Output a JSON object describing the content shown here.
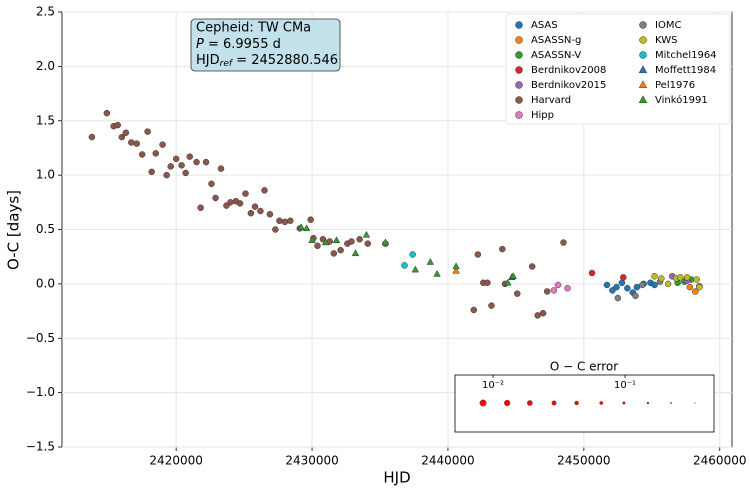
{
  "chart_data": {
    "type": "scatter",
    "x_label": "HJD",
    "y_label": "O-C [days]",
    "xlim": [
      2411600,
      2460900
    ],
    "ylim": [
      -1.5,
      2.5
    ],
    "xticks": [
      2420000,
      2430000,
      2440000,
      2450000,
      2460000
    ],
    "yticks": [
      {
        "value": -1.5,
        "label": "−1.5"
      },
      {
        "value": -1,
        "label": "−1.0"
      },
      {
        "value": -0.5,
        "label": "−0.5"
      },
      {
        "value": 0,
        "label": "0.0"
      },
      0.5,
      {
        "value": 1,
        "label": "1.0"
      },
      1.5,
      {
        "value": 2,
        "label": "2.0"
      },
      2.5
    ],
    "grid": true,
    "legend": "upper right",
    "annotation": {
      "star": "Cepheid: TW CMa",
      "period": [
        "P",
        " = 6.9955 d"
      ],
      "epoch": [
        "HJD",
        "ref",
        " = 2452880.546"
      ]
    },
    "series": [
      {
        "name": "ASAS",
        "color": "#1f77b4",
        "marker": "o",
        "x": [
          2451700,
          2452100,
          2452400,
          2452800,
          2453200,
          2453600,
          2453900,
          2454400,
          2454900,
          2455200
        ],
        "values": [
          -0.01,
          -0.06,
          -0.03,
          0.01,
          -0.04,
          -0.08,
          -0.03,
          0.0,
          0.01,
          -0.01
        ]
      },
      {
        "name": "ASASSN-g",
        "color": "#ff7f0e",
        "marker": "o",
        "x": [
          2457800,
          2458200,
          2458500
        ],
        "values": [
          -0.03,
          -0.07,
          -0.02
        ]
      },
      {
        "name": "ASASSN-V",
        "color": "#2ca02c",
        "marker": "o",
        "x": [
          2456900,
          2457400,
          2457900
        ],
        "values": [
          0.01,
          0.02,
          0.04
        ]
      },
      {
        "name": "Berdnikov2008",
        "color": "#d62728",
        "marker": "o",
        "x": [
          2450600,
          2452900
        ],
        "values": [
          0.1,
          0.06
        ]
      },
      {
        "name": "Berdnikov2015",
        "color": "#9467bd",
        "marker": "o",
        "x": [
          2456500,
          2457600
        ],
        "values": [
          0.07,
          0.03
        ]
      },
      {
        "name": "Harvard",
        "color": "#8c564b",
        "marker": "o",
        "x": [
          2413800,
          2414900,
          2415400,
          2415700,
          2416000,
          2416300,
          2416700,
          2417100,
          2417500,
          2417900,
          2418200,
          2418500,
          2419000,
          2419300,
          2419600,
          2420000,
          2420400,
          2420700,
          2421000,
          2421500,
          2421800,
          2422200,
          2422600,
          2422900,
          2423300,
          2423700,
          2424000,
          2424400,
          2424700,
          2425100,
          2425500,
          2425800,
          2426200,
          2426500,
          2426900,
          2427300,
          2427600,
          2428000,
          2428400,
          2429100,
          2429900,
          2430100,
          2430400,
          2430800,
          2431300,
          2431600,
          2432100,
          2432600,
          2432900,
          2433500,
          2434100,
          2435400,
          2442200,
          2441900,
          2442600,
          2442900,
          2443200,
          2444000,
          2444200,
          2445100,
          2446200,
          2446600,
          2447000,
          2447300,
          2448500
        ],
        "values": [
          1.35,
          1.57,
          1.45,
          1.46,
          1.35,
          1.39,
          1.3,
          1.29,
          1.19,
          1.4,
          1.03,
          1.2,
          1.28,
          1.0,
          1.08,
          1.15,
          1.09,
          1.02,
          1.17,
          1.12,
          0.7,
          1.12,
          0.92,
          0.79,
          1.06,
          0.72,
          0.75,
          0.76,
          0.74,
          0.83,
          0.65,
          0.71,
          0.67,
          0.86,
          0.64,
          0.5,
          0.58,
          0.57,
          0.58,
          0.51,
          0.59,
          0.42,
          0.35,
          0.41,
          0.39,
          0.28,
          0.31,
          0.37,
          0.39,
          0.41,
          0.37,
          0.37,
          0.27,
          -0.24,
          0.01,
          0.01,
          -0.2,
          0.32,
          0.0,
          -0.09,
          0.16,
          -0.29,
          -0.27,
          -0.07,
          0.38
        ]
      },
      {
        "name": "Hipp",
        "color": "#e377c2",
        "marker": "o",
        "x": [
          2447800,
          2448100,
          2448800
        ],
        "values": [
          -0.06,
          -0.01,
          -0.04
        ]
      },
      {
        "name": "IOMC",
        "color": "#7f7f7f",
        "marker": "o",
        "x": [
          2452500,
          2453800,
          2454300,
          2455600
        ],
        "values": [
          -0.13,
          -0.11,
          -0.01,
          0.02
        ]
      },
      {
        "name": "KWS",
        "color": "#bcbd22",
        "marker": "o",
        "x": [
          2455200,
          2455700,
          2456200,
          2456800,
          2457100,
          2457600,
          2458300,
          2458500
        ],
        "values": [
          0.07,
          0.05,
          0.0,
          0.05,
          0.06,
          0.06,
          0.04,
          -0.03
        ]
      },
      {
        "name": "Mitchel1964",
        "color": "#17becf",
        "marker": "o",
        "x": [
          2436800,
          2437400
        ],
        "values": [
          0.17,
          0.27
        ]
      },
      {
        "name": "Moffett1984",
        "color": "#1f77b4",
        "marker": "^",
        "x": [
          2444700
        ],
        "values": [
          0.06
        ]
      },
      {
        "name": "Pel1976",
        "color": "#ff7f0e",
        "marker": "^",
        "x": [
          2440600
        ],
        "values": [
          0.12
        ]
      },
      {
        "name": "Vinkó1991",
        "color": "#2ca02c",
        "marker": "^",
        "x": [
          2429200,
          2429600,
          2430000,
          2431000,
          2431800,
          2433200,
          2434000,
          2435400,
          2437600,
          2438700,
          2439200,
          2440600,
          2444400,
          2444800
        ],
        "values": [
          0.52,
          0.51,
          0.4,
          0.38,
          0.4,
          0.28,
          0.45,
          0.38,
          0.13,
          0.2,
          0.09,
          0.16,
          0.01,
          0.07
        ]
      }
    ],
    "error_key": {
      "title": "O − C error",
      "color": "#ff0000",
      "log_scale": true,
      "xlim": [
        0.00515,
        0.472
      ],
      "xticks": [
        {
          "value": 0.01,
          "label": "10⁻²"
        },
        {
          "value": 0.1,
          "label": "10⁻¹"
        }
      ],
      "values": [
        0.0084,
        0.0128,
        0.019,
        0.029,
        0.043,
        0.066,
        0.098,
        0.149,
        0.223,
        0.339
      ]
    }
  }
}
